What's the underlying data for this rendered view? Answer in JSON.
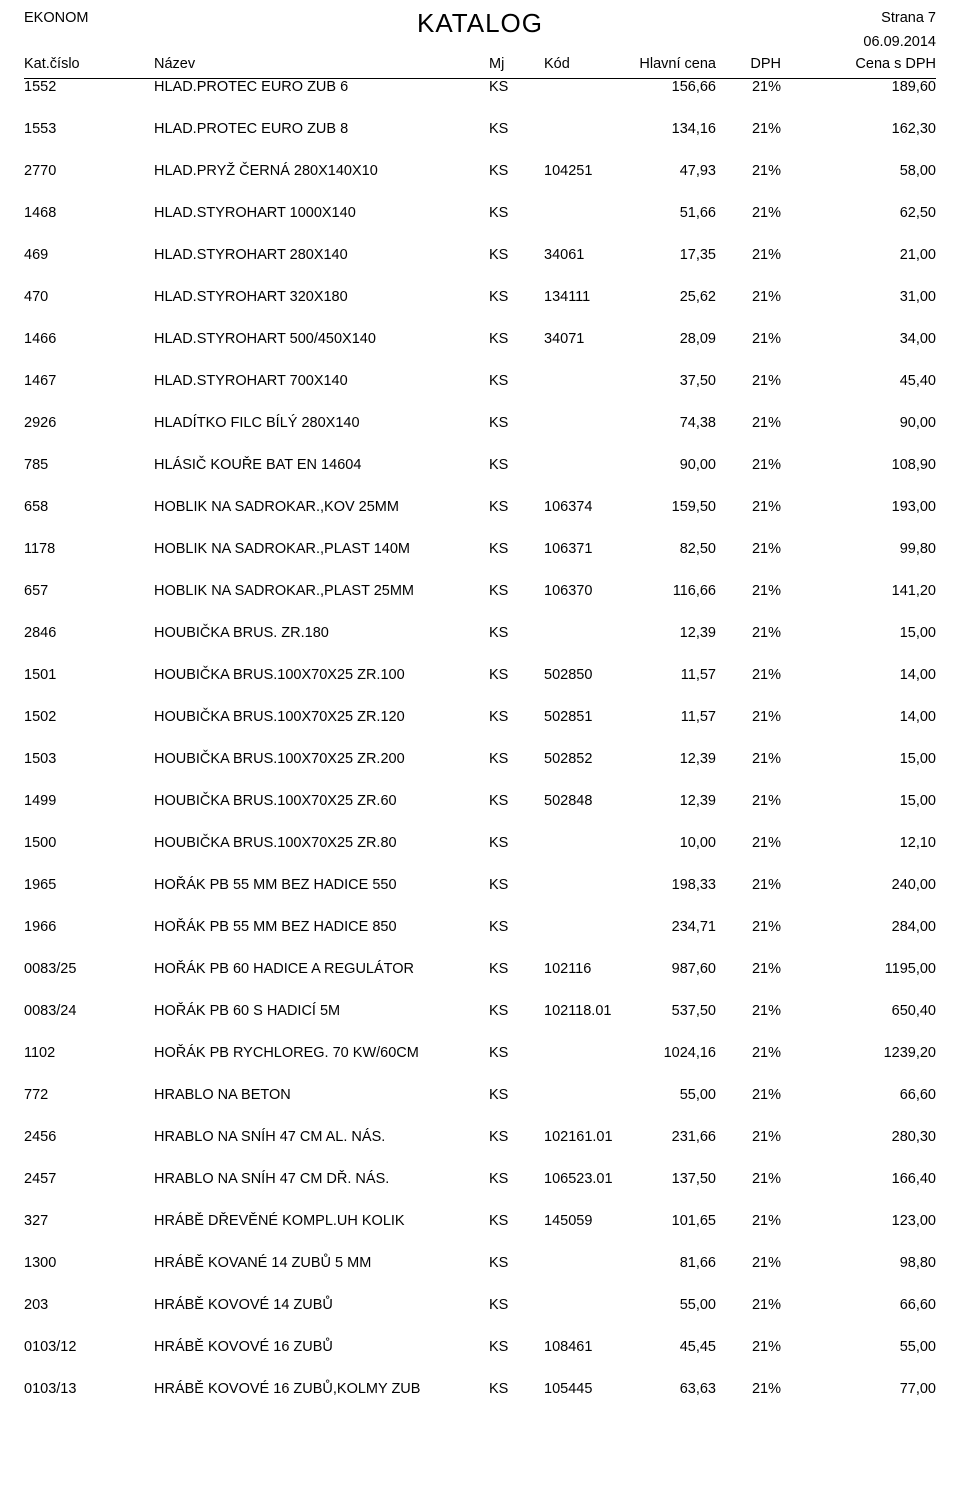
{
  "brand": "EKONOM",
  "title": "KATALOG",
  "page_num": "Strana 7",
  "date": "06.09.2014",
  "columns": {
    "kat": "Kat.číslo",
    "nazev": "Název",
    "mj": "Mj",
    "kod": "Kód",
    "hlavni": "Hlavní cena",
    "dph": "DPH",
    "cena": "Cena s DPH"
  },
  "rows": [
    {
      "kat": "1552",
      "nazev": "HLAD.PROTEC EURO ZUB 6",
      "mj": "KS",
      "kod": "",
      "hlavni": "156,66",
      "dph": "21%",
      "cena": "189,60"
    },
    {
      "kat": "1553",
      "nazev": "HLAD.PROTEC EURO ZUB 8",
      "mj": "KS",
      "kod": "",
      "hlavni": "134,16",
      "dph": "21%",
      "cena": "162,30"
    },
    {
      "kat": "2770",
      "nazev": "HLAD.PRYŽ ČERNÁ 280X140X10",
      "mj": "KS",
      "kod": "104251",
      "hlavni": "47,93",
      "dph": "21%",
      "cena": "58,00"
    },
    {
      "kat": "1468",
      "nazev": "HLAD.STYROHART 1000X140",
      "mj": "KS",
      "kod": "",
      "hlavni": "51,66",
      "dph": "21%",
      "cena": "62,50"
    },
    {
      "kat": "469",
      "nazev": "HLAD.STYROHART 280X140",
      "mj": "KS",
      "kod": "34061",
      "hlavni": "17,35",
      "dph": "21%",
      "cena": "21,00"
    },
    {
      "kat": "470",
      "nazev": "HLAD.STYROHART 320X180",
      "mj": "KS",
      "kod": "134111",
      "hlavni": "25,62",
      "dph": "21%",
      "cena": "31,00"
    },
    {
      "kat": "1466",
      "nazev": "HLAD.STYROHART 500/450X140",
      "mj": "KS",
      "kod": "34071",
      "hlavni": "28,09",
      "dph": "21%",
      "cena": "34,00"
    },
    {
      "kat": "1467",
      "nazev": "HLAD.STYROHART 700X140",
      "mj": "KS",
      "kod": "",
      "hlavni": "37,50",
      "dph": "21%",
      "cena": "45,40"
    },
    {
      "kat": "2926",
      "nazev": "HLADÍTKO FILC BÍLÝ 280X140",
      "mj": "KS",
      "kod": "",
      "hlavni": "74,38",
      "dph": "21%",
      "cena": "90,00"
    },
    {
      "kat": "785",
      "nazev": "HLÁSIČ KOUŘE BAT EN 14604",
      "mj": "KS",
      "kod": "",
      "hlavni": "90,00",
      "dph": "21%",
      "cena": "108,90"
    },
    {
      "kat": "658",
      "nazev": "HOBLIK NA SADROKAR.,KOV 25MM",
      "mj": "KS",
      "kod": "106374",
      "hlavni": "159,50",
      "dph": "21%",
      "cena": "193,00"
    },
    {
      "kat": "1178",
      "nazev": "HOBLIK NA SADROKAR.,PLAST 140M",
      "mj": "KS",
      "kod": "106371",
      "hlavni": "82,50",
      "dph": "21%",
      "cena": "99,80"
    },
    {
      "kat": "657",
      "nazev": "HOBLIK NA SADROKAR.,PLAST 25MM",
      "mj": "KS",
      "kod": "106370",
      "hlavni": "116,66",
      "dph": "21%",
      "cena": "141,20"
    },
    {
      "kat": "2846",
      "nazev": "HOUBIČKA BRUS. ZR.180",
      "mj": "KS",
      "kod": "",
      "hlavni": "12,39",
      "dph": "21%",
      "cena": "15,00"
    },
    {
      "kat": "1501",
      "nazev": "HOUBIČKA BRUS.100X70X25 ZR.100",
      "mj": "KS",
      "kod": "502850",
      "hlavni": "11,57",
      "dph": "21%",
      "cena": "14,00"
    },
    {
      "kat": "1502",
      "nazev": "HOUBIČKA BRUS.100X70X25 ZR.120",
      "mj": "KS",
      "kod": "502851",
      "hlavni": "11,57",
      "dph": "21%",
      "cena": "14,00"
    },
    {
      "kat": "1503",
      "nazev": "HOUBIČKA BRUS.100X70X25 ZR.200",
      "mj": "KS",
      "kod": "502852",
      "hlavni": "12,39",
      "dph": "21%",
      "cena": "15,00"
    },
    {
      "kat": "1499",
      "nazev": "HOUBIČKA BRUS.100X70X25 ZR.60",
      "mj": "KS",
      "kod": "502848",
      "hlavni": "12,39",
      "dph": "21%",
      "cena": "15,00"
    },
    {
      "kat": "1500",
      "nazev": "HOUBIČKA BRUS.100X70X25 ZR.80",
      "mj": "KS",
      "kod": "",
      "hlavni": "10,00",
      "dph": "21%",
      "cena": "12,10"
    },
    {
      "kat": "1965",
      "nazev": "HOŘÁK PB 55 MM BEZ HADICE 550",
      "mj": "KS",
      "kod": "",
      "hlavni": "198,33",
      "dph": "21%",
      "cena": "240,00"
    },
    {
      "kat": "1966",
      "nazev": "HOŘÁK PB 55 MM BEZ HADICE 850",
      "mj": "KS",
      "kod": "",
      "hlavni": "234,71",
      "dph": "21%",
      "cena": "284,00"
    },
    {
      "kat": "0083/25",
      "nazev": "HOŘÁK PB 60 HADICE A REGULÁTOR",
      "mj": "KS",
      "kod": "102116",
      "hlavni": "987,60",
      "dph": "21%",
      "cena": "1195,00"
    },
    {
      "kat": "0083/24",
      "nazev": "HOŘÁK PB 60 S HADICÍ 5M",
      "mj": "KS",
      "kod": "102118.01",
      "hlavni": "537,50",
      "dph": "21%",
      "cena": "650,40"
    },
    {
      "kat": "1102",
      "nazev": "HOŘÁK PB RYCHLOREG. 70 KW/60CM",
      "mj": "KS",
      "kod": "",
      "hlavni": "1024,16",
      "dph": "21%",
      "cena": "1239,20"
    },
    {
      "kat": "772",
      "nazev": "HRABLO NA BETON",
      "mj": "KS",
      "kod": "",
      "hlavni": "55,00",
      "dph": "21%",
      "cena": "66,60"
    },
    {
      "kat": "2456",
      "nazev": "HRABLO NA SNÍH 47 CM AL. NÁS.",
      "mj": "KS",
      "kod": "102161.01",
      "hlavni": "231,66",
      "dph": "21%",
      "cena": "280,30"
    },
    {
      "kat": "2457",
      "nazev": "HRABLO NA SNÍH 47 CM DŘ. NÁS.",
      "mj": "KS",
      "kod": "106523.01",
      "hlavni": "137,50",
      "dph": "21%",
      "cena": "166,40"
    },
    {
      "kat": "327",
      "nazev": "HRÁBĚ DŘEVĚNÉ KOMPL.UH KOLIK",
      "mj": "KS",
      "kod": "145059",
      "hlavni": "101,65",
      "dph": "21%",
      "cena": "123,00"
    },
    {
      "kat": "1300",
      "nazev": "HRÁBĚ KOVANÉ 14 ZUBŮ 5 MM",
      "mj": "KS",
      "kod": "",
      "hlavni": "81,66",
      "dph": "21%",
      "cena": "98,80"
    },
    {
      "kat": "203",
      "nazev": "HRÁBĚ KOVOVÉ 14 ZUBŮ",
      "mj": "KS",
      "kod": "",
      "hlavni": "55,00",
      "dph": "21%",
      "cena": "66,60"
    },
    {
      "kat": "0103/12",
      "nazev": "HRÁBĚ KOVOVÉ 16 ZUBŮ",
      "mj": "KS",
      "kod": "108461",
      "hlavni": "45,45",
      "dph": "21%",
      "cena": "55,00"
    },
    {
      "kat": "0103/13",
      "nazev": "HRÁBĚ KOVOVÉ 16 ZUBŮ,KOLMY ZUB",
      "mj": "KS",
      "kod": "105445",
      "hlavni": "63,63",
      "dph": "21%",
      "cena": "77,00"
    }
  ]
}
